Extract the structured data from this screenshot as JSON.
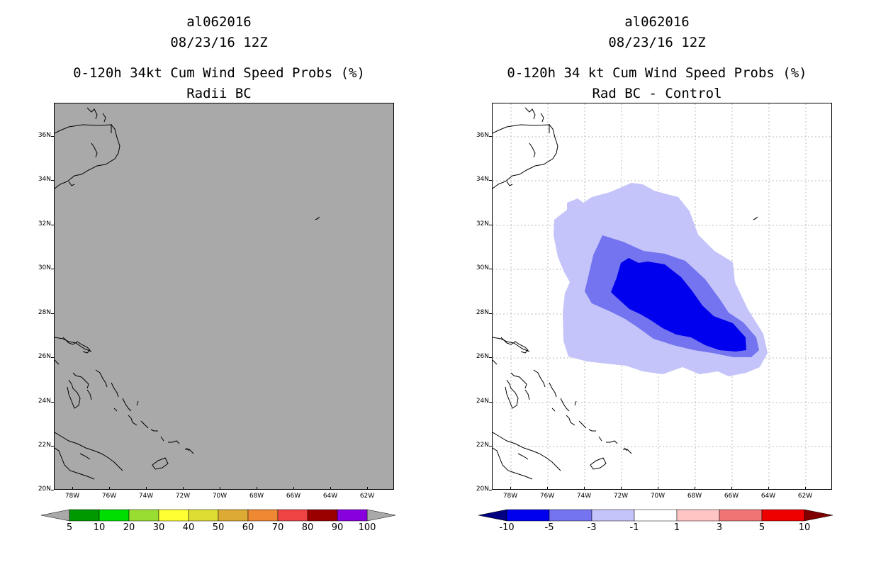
{
  "left_panel": {
    "storm_id": "al062016",
    "datetime": "08/23/16 12Z",
    "product": "0-120h 34kt Cum Wind Speed Probs (%)",
    "subtitle": "Radii BC",
    "fill_color": "#a9a9a9",
    "colorbar": {
      "colors": [
        "#009900",
        "#00dd00",
        "#99dd33",
        "#ffff33",
        "#dddd33",
        "#ddaa33",
        "#ee8833",
        "#ee4444",
        "#990000",
        "#8800dd"
      ],
      "end_color": "#a9a9a9",
      "labels": [
        "5",
        "10",
        "20",
        "30",
        "40",
        "50",
        "60",
        "70",
        "80",
        "90",
        "100"
      ]
    }
  },
  "right_panel": {
    "storm_id": "al062016",
    "datetime": "08/23/16 12Z",
    "product": "0-120h 34 kt Cum Wind Speed Probs (%)",
    "subtitle": "Rad BC - Control",
    "contour_colors": {
      "minus1_to_minus3": "#c4c4fa",
      "minus3_to_minus5": "#7474f0",
      "minus5_to_minus10": "#0000ee"
    },
    "colorbar": {
      "colors": [
        "#0000ee",
        "#7474f0",
        "#c4c4fa",
        "#ffffff",
        "#ffc4c4",
        "#f07474",
        "#ee0000"
      ],
      "low_end_color": "#000080",
      "high_end_color": "#800000",
      "labels": [
        "-10",
        "-5",
        "-3",
        "-1",
        "1",
        "3",
        "5",
        "10"
      ]
    }
  },
  "axes": {
    "lat_labels": [
      "36N",
      "34N",
      "32N",
      "30N",
      "28N",
      "26N",
      "24N",
      "22N",
      "20N"
    ],
    "lon_labels": [
      "78W",
      "76W",
      "74W",
      "72W",
      "70W",
      "68W",
      "66W",
      "64W",
      "62W"
    ]
  }
}
